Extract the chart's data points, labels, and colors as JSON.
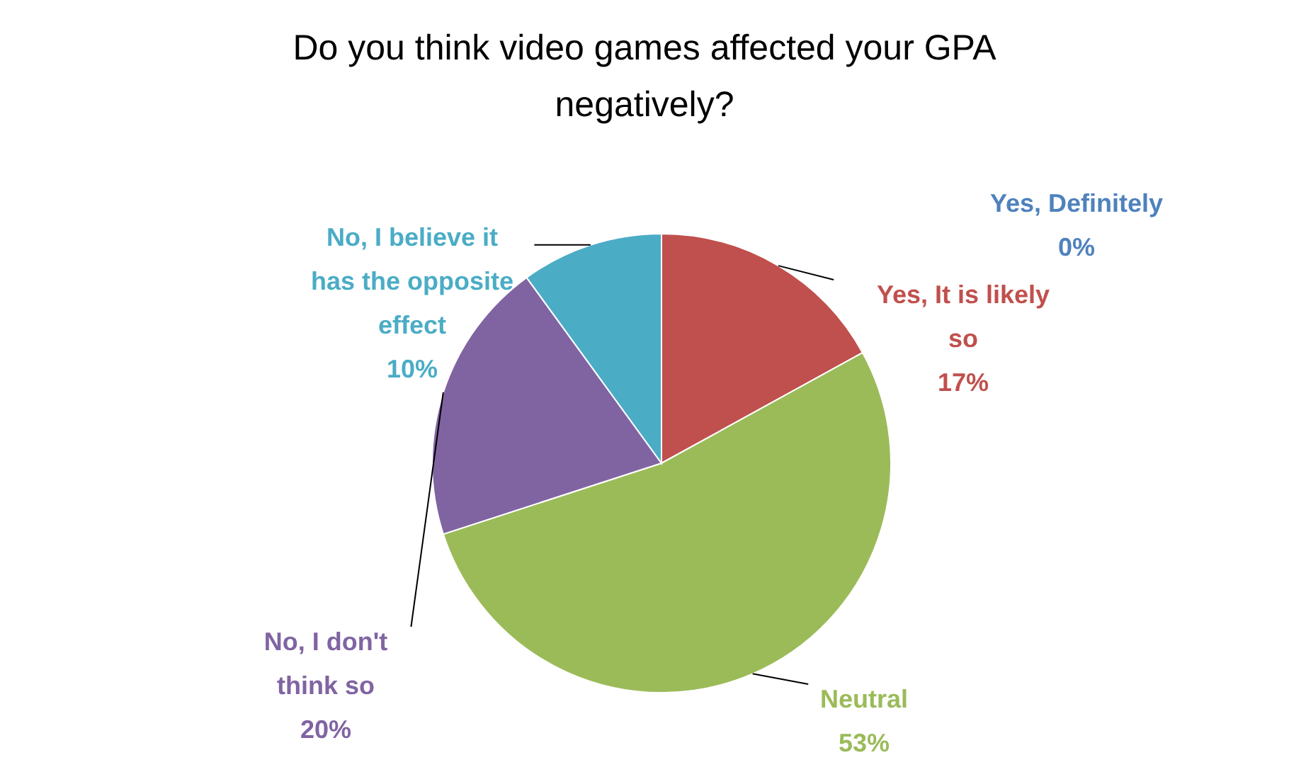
{
  "chart_data": {
    "type": "pie",
    "title": "Do you think video games affected your GPA negatively?",
    "categories": [
      "Yes, Definitely",
      "Yes, It is likely so",
      "Neutral",
      "No, I don't think so",
      "No, I believe it has the opposite effect"
    ],
    "values": [
      0,
      17,
      53,
      20,
      10
    ],
    "value_labels": [
      "0%",
      "17%",
      "53%",
      "20%",
      "10%"
    ],
    "colors": [
      "#4f81bd",
      "#c0504d",
      "#9bbb59",
      "#8064a2",
      "#4bacc6"
    ],
    "legend": false
  }
}
